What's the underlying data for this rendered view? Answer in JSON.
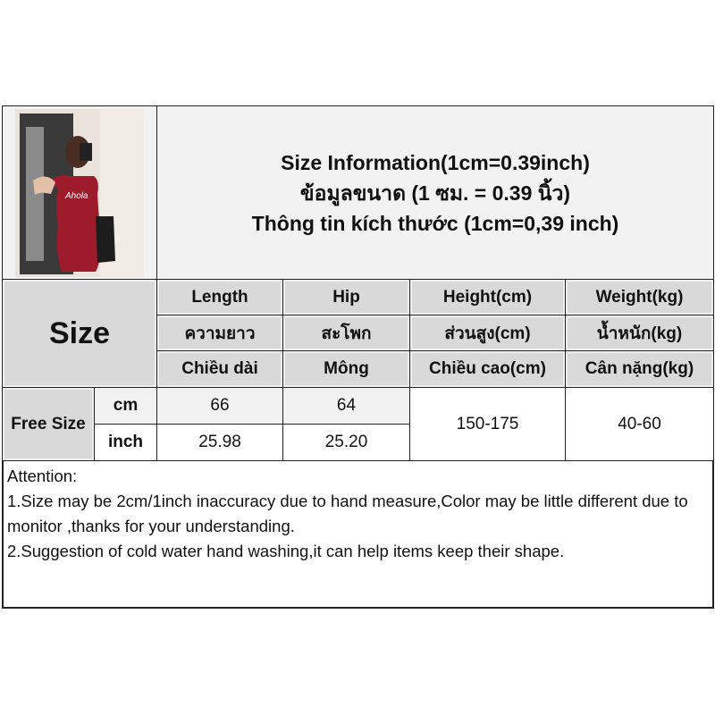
{
  "title_lines": [
    "Size Information(1cm=0.39inch)",
    "ข้อมูลขนาด (1 ซม. = 0.39 นิ้ว)",
    "Thông tin kích thước (1cm=0,39 inch)"
  ],
  "size_header": "Size",
  "columns": [
    {
      "en": "Length",
      "th": "ความยาว",
      "vi": "Chiều dài"
    },
    {
      "en": "Hip",
      "th": "สะโพก",
      "vi": "Mông"
    },
    {
      "en": "Height(cm)",
      "th": "ส่วนสูง(cm)",
      "vi": "Chiều cao(cm)"
    },
    {
      "en": "Weight(kg)",
      "th": "น้ำหนัก(kg)",
      "vi": "Cân nặng(kg)"
    }
  ],
  "row_label": "Free Size",
  "units": [
    "cm",
    "inch"
  ],
  "rows": {
    "cm": {
      "length": "66",
      "hip": "64"
    },
    "inch": {
      "length": "25.98",
      "hip": "25.20"
    },
    "height": "150-175",
    "weight": "40-60"
  },
  "attention": [
    "Attention:",
    "1.Size may be 2cm/1inch inaccuracy due to hand measure,Color may be little different due to monitor ,thanks for your understanding.",
    "2.Suggestion of cold water hand washing,it can help items keep their shape."
  ],
  "colors": {
    "header_bg": "#d9d9d9",
    "title_bg": "#f2f2f2",
    "dress": "#9e1b2c"
  }
}
